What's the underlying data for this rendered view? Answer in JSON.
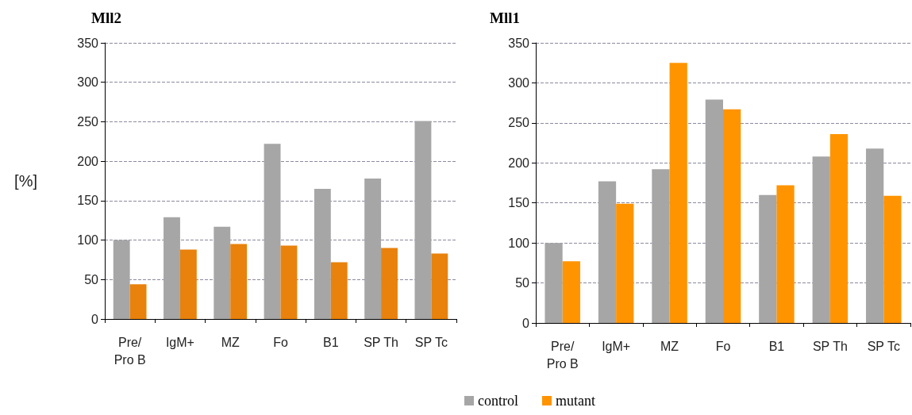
{
  "chart_data": [
    {
      "type": "bar",
      "title": "Mll2",
      "ylabel": "[%]",
      "categories": [
        "Pre/\nPro B",
        "IgM+",
        "MZ",
        "Fo",
        "B1",
        "SP Th",
        "SP Tc"
      ],
      "series": [
        {
          "color": "#a6a6a6",
          "values": [
            100,
            129,
            117,
            222,
            165,
            178,
            251
          ]
        },
        {
          "color": "#e8820c",
          "values": [
            44,
            88,
            95,
            93,
            72,
            90,
            83
          ]
        }
      ],
      "ylim": [
        0,
        350
      ],
      "yticks": [
        0,
        50,
        100,
        150,
        200,
        250,
        300,
        350
      ],
      "grid": "y",
      "legend": false
    },
    {
      "type": "bar",
      "title": "Mll1",
      "categories": [
        "Pre/\nPro B",
        "IgM+",
        "MZ",
        "Fo",
        "B1",
        "SP Th",
        "SP Tc"
      ],
      "series": [
        {
          "name": "control",
          "color": "#a6a6a6",
          "values": [
            100,
            177,
            192,
            279,
            160,
            208,
            218
          ]
        },
        {
          "name": "mutant",
          "color": "#ff9400",
          "values": [
            77,
            149,
            325,
            267,
            172,
            236,
            159
          ]
        }
      ],
      "ylim": [
        0,
        350
      ],
      "yticks": [
        0,
        50,
        100,
        150,
        200,
        250,
        300,
        350
      ],
      "grid": "y",
      "legend": "bottom"
    }
  ]
}
